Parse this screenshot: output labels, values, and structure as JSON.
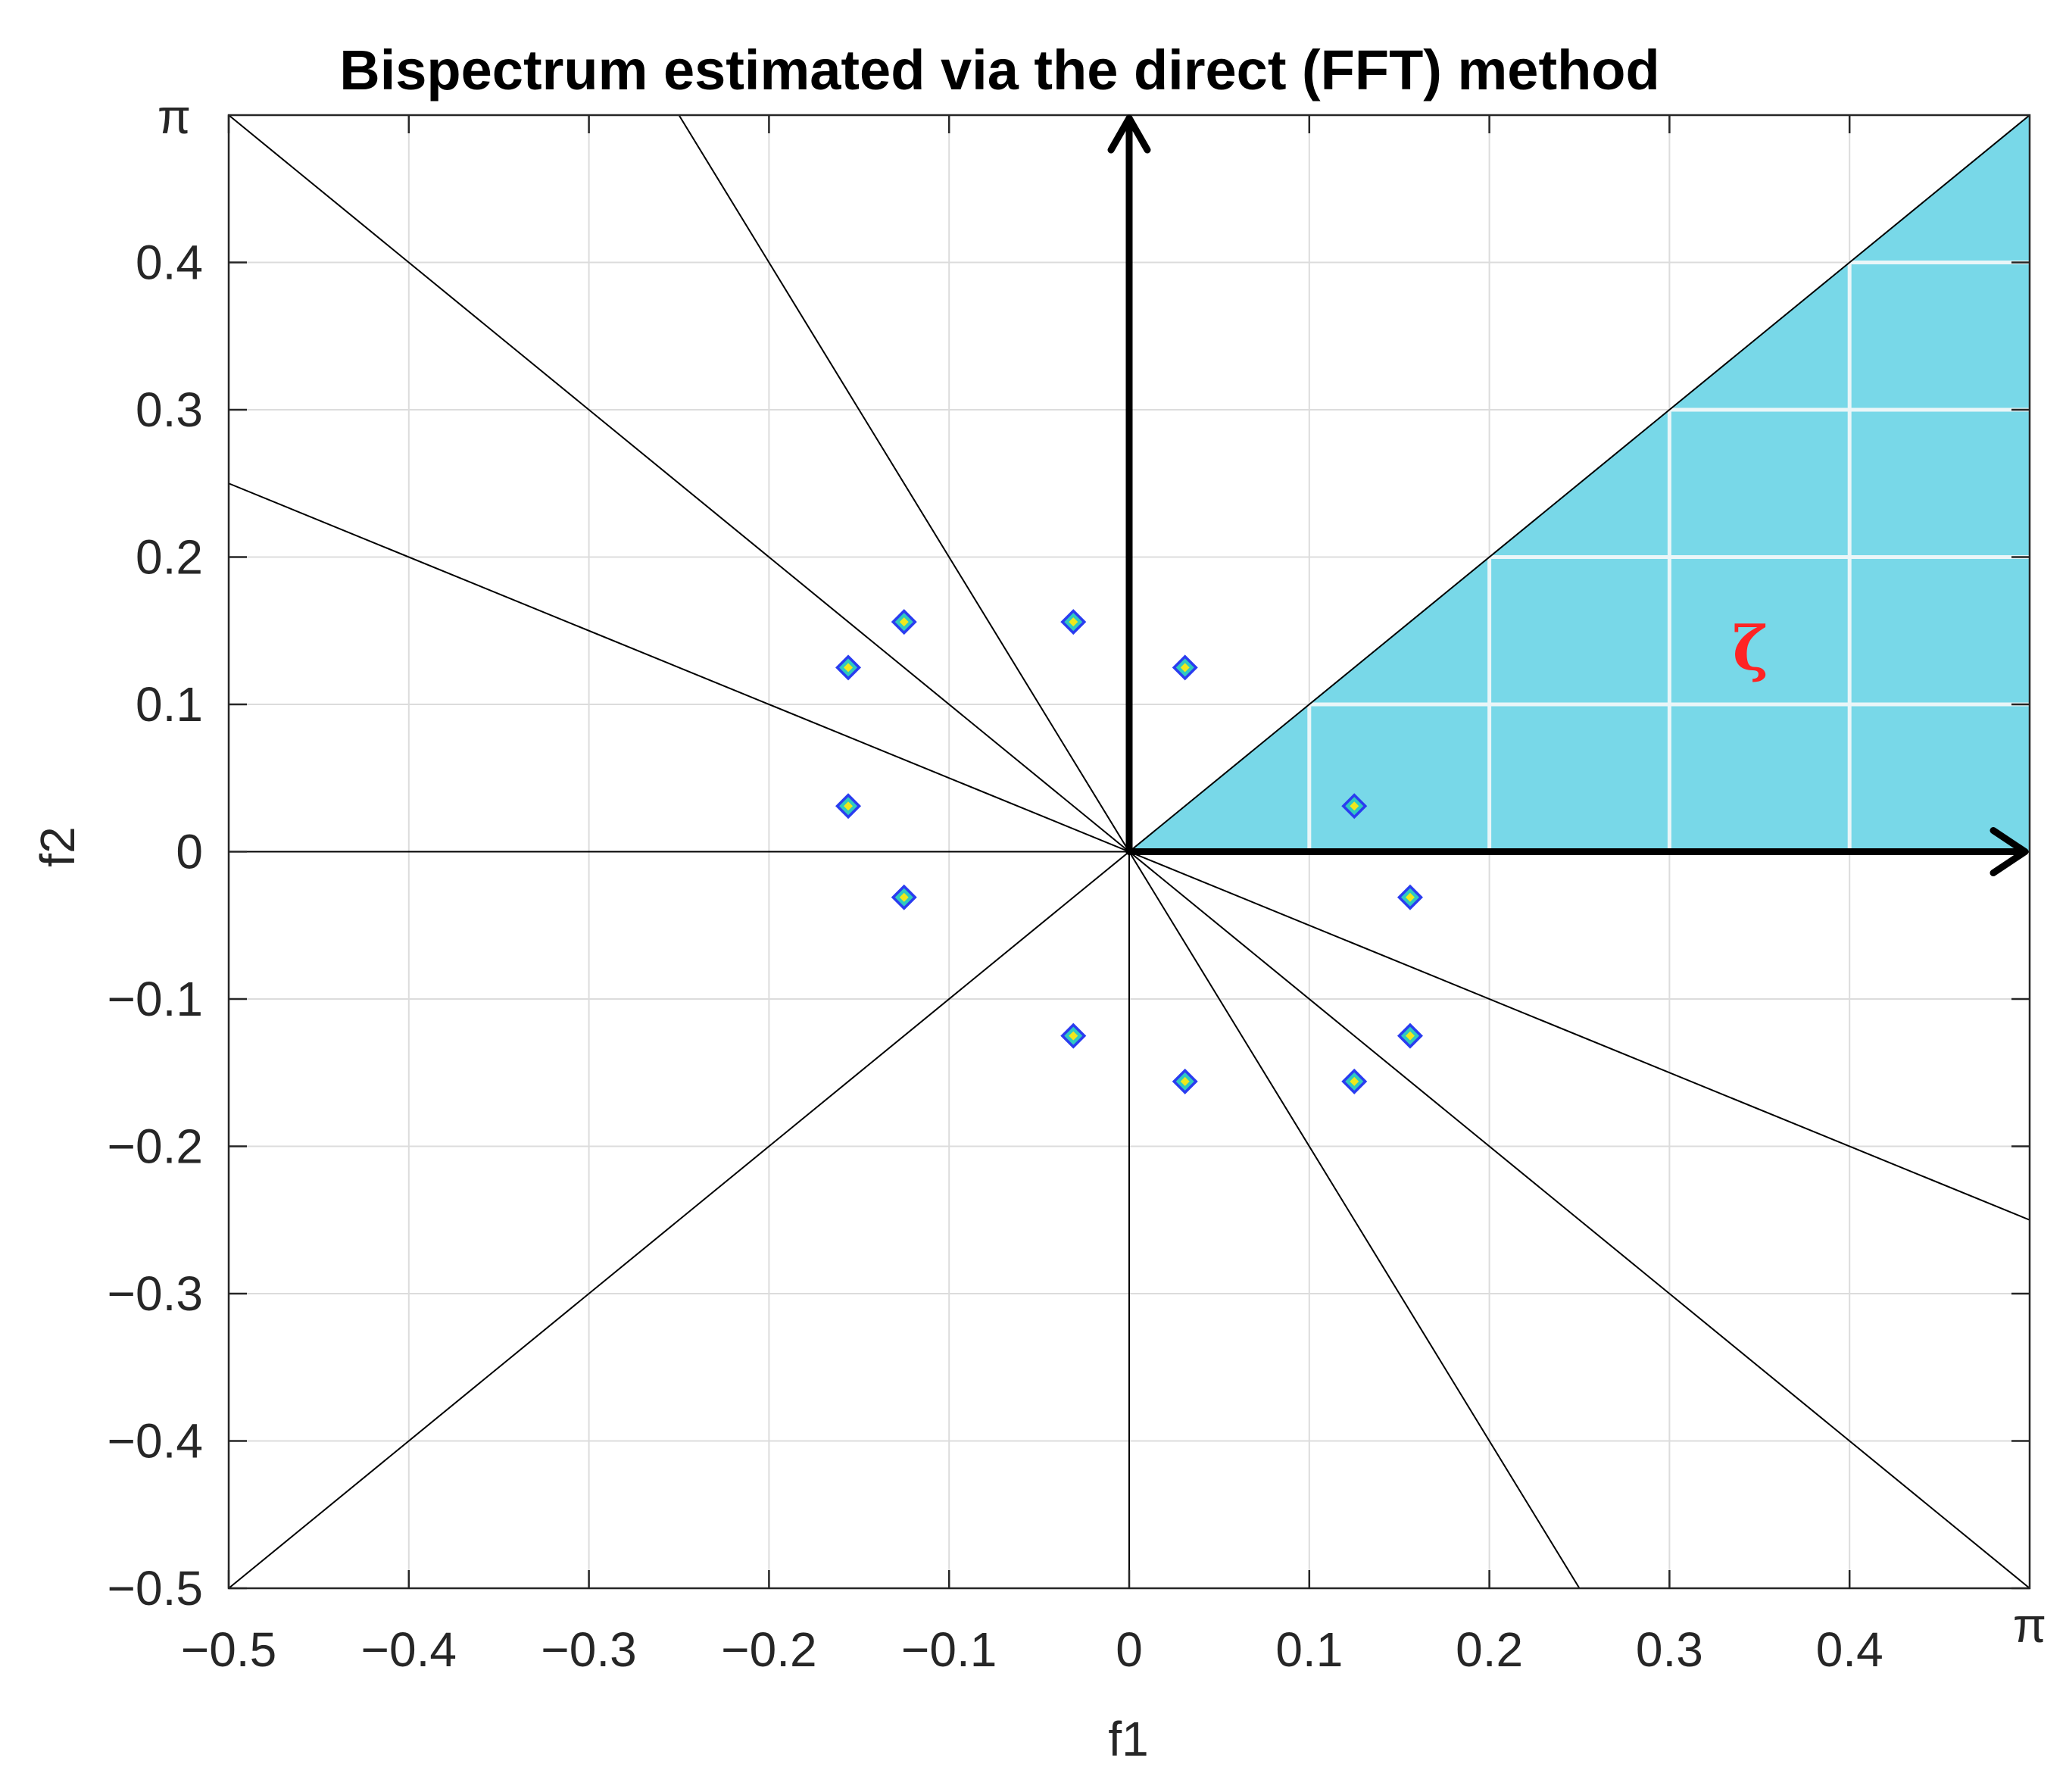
{
  "chart_data": {
    "type": "scatter",
    "title": "Bispectrum estimated via the direct (FFT) method",
    "xlabel": "f1",
    "ylabel": "f2",
    "xlim": [
      -0.5,
      0.5
    ],
    "ylim": [
      -0.5,
      0.5
    ],
    "grid": true,
    "x_ticks": [
      -0.5,
      -0.4,
      -0.3,
      -0.2,
      -0.1,
      0,
      0.1,
      0.2,
      0.3,
      0.4
    ],
    "x_tick_labels": [
      "−0.5",
      "−0.4",
      "−0.3",
      "−0.2",
      "−0.1",
      "0",
      "0.1",
      "0.2",
      "0.3",
      "0.4"
    ],
    "y_ticks": [
      -0.5,
      -0.4,
      -0.3,
      -0.2,
      -0.1,
      0,
      0.1,
      0.2,
      0.3,
      0.4
    ],
    "y_tick_labels": [
      "−0.5",
      "−0.4",
      "−0.3",
      "−0.2",
      "−0.1",
      "0",
      "0.1",
      "0.2",
      "0.3",
      "0.4"
    ],
    "x_end_label": "π",
    "y_end_label": "π",
    "peaks": [
      {
        "f1": -0.125,
        "f2": 0.156
      },
      {
        "f1": -0.031,
        "f2": 0.156
      },
      {
        "f1": -0.156,
        "f2": 0.125
      },
      {
        "f1": 0.031,
        "f2": 0.125
      },
      {
        "f1": -0.156,
        "f2": 0.031
      },
      {
        "f1": 0.125,
        "f2": 0.031
      },
      {
        "f1": -0.125,
        "f2": -0.031
      },
      {
        "f1": 0.156,
        "f2": -0.031
      },
      {
        "f1": -0.031,
        "f2": -0.125
      },
      {
        "f1": 0.156,
        "f2": -0.125
      },
      {
        "f1": 0.031,
        "f2": -0.156
      },
      {
        "f1": 0.125,
        "f2": -0.156
      }
    ],
    "symmetry_lines": [
      {
        "name": "f2 = f1",
        "p1": [
          -0.5,
          -0.5
        ],
        "p2": [
          0.5,
          0.5
        ]
      },
      {
        "name": "f2 = -f1",
        "p1": [
          -0.5,
          0.5
        ],
        "p2": [
          0.5,
          -0.5
        ]
      },
      {
        "name": "f2 = -2f1",
        "p1": [
          -0.25,
          0.5
        ],
        "p2": [
          0.25,
          -0.5
        ]
      },
      {
        "name": "f2 = -f1/2",
        "p1": [
          -0.5,
          0.25
        ],
        "p2": [
          0.5,
          -0.25
        ]
      },
      {
        "name": "f2 = 0",
        "p1": [
          -0.5,
          0
        ],
        "p2": [
          0,
          0
        ]
      },
      {
        "name": "f1 = 0",
        "p1": [
          0,
          -0.5
        ],
        "p2": [
          0,
          0
        ]
      }
    ],
    "region": {
      "label": "ζ",
      "label_at": [
        0.345,
        0.138
      ],
      "vertices": [
        [
          0,
          0
        ],
        [
          0.5,
          0
        ],
        [
          0.5,
          0.5
        ]
      ],
      "fill": "#78d8e8"
    },
    "arrow_axes_origin": [
      0,
      0
    ],
    "colors": {
      "peak_outer": "#2a3cf0",
      "peak_mid": "#2fc9c0",
      "peak_inner": "#f0e81c",
      "grid": "#dcdcdc",
      "region_grid": "#eaf6f8",
      "zeta": "#ff2424"
    }
  }
}
